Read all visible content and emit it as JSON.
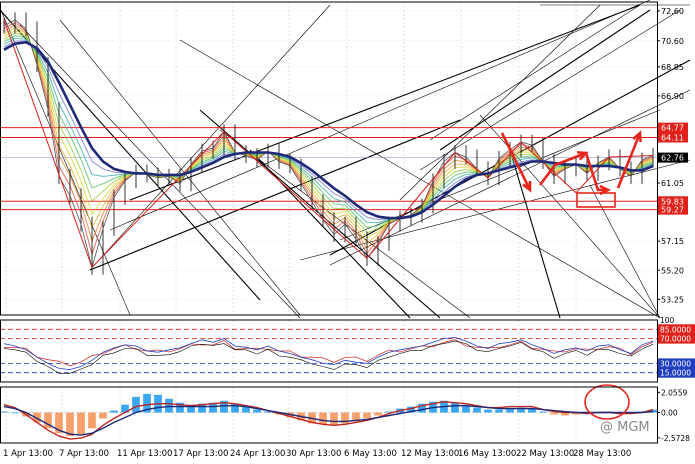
{
  "chart_data": {
    "type": "line",
    "instrument": "",
    "price_panel": {
      "ylim": [
        52.2,
        73.2
      ],
      "ticks": [
        "72.60",
        "70.60",
        "68.85",
        "66.90",
        "64.77",
        "64.11",
        "62.76",
        "61.05",
        "59.83",
        "59.27",
        "57.15",
        "55.20",
        "53.25"
      ],
      "tick_values": [
        72.6,
        70.6,
        68.85,
        66.9,
        64.77,
        64.11,
        62.76,
        61.05,
        59.83,
        59.27,
        57.15,
        55.2,
        53.25
      ],
      "highlighted_ticks": [
        "64.77",
        "64.11",
        "59.83",
        "59.27"
      ],
      "current_price": "62.76",
      "horizontal_levels": [
        64.77,
        64.11,
        59.83,
        59.27
      ],
      "close": [
        71.6,
        72.0,
        71.4,
        69.0,
        66.0,
        61.5,
        60.2,
        58.3,
        55.4,
        58.0,
        60.1,
        61.2,
        61.8,
        61.6,
        61.4,
        61.5,
        61.0,
        62.3,
        63.2,
        63.4,
        64.5,
        63.1,
        62.9,
        62.6,
        63.2,
        62.5,
        62.2,
        61.0,
        59.8,
        58.6,
        57.6,
        58.3,
        57.3,
        56.0,
        57.0,
        58.3,
        58.7,
        58.9,
        59.5,
        61.2,
        62.5,
        63.1,
        62.8,
        62.0,
        61.4,
        62.7,
        63.3,
        63.8,
        63.6,
        62.5,
        61.5,
        62.0,
        62.3,
        61.7,
        62.4,
        62.8,
        62.0,
        61.5,
        62.6,
        62.9
      ],
      "ma_slow": [
        70.0,
        70.4,
        70.5,
        70.1,
        69.2,
        67.8,
        66.3,
        64.8,
        63.4,
        62.5,
        62.0,
        61.8,
        61.7,
        61.7,
        61.6,
        61.6,
        61.6,
        61.8,
        62.1,
        62.4,
        62.8,
        63.0,
        63.1,
        63.1,
        63.1,
        63.0,
        62.8,
        62.4,
        61.9,
        61.3,
        60.7,
        60.2,
        59.6,
        59.1,
        58.8,
        58.7,
        58.7,
        58.8,
        59.1,
        59.6,
        60.2,
        60.8,
        61.3,
        61.6,
        61.7,
        61.9,
        62.1,
        62.3,
        62.5,
        62.5,
        62.4,
        62.3,
        62.3,
        62.2,
        62.2,
        62.2,
        62.1,
        61.9,
        61.9,
        62.2
      ]
    },
    "date_axis": [
      "1 Apr 13:00",
      "7 Apr 13:00",
      "11 Apr 13:00",
      "17 Apr 13:00",
      "24 Apr 13:00",
      "30 Apr 13:00",
      "6 May 13:00",
      "12 May 13:00",
      "16 May 13:00",
      "22 May 13:00",
      "28 May 13:00"
    ],
    "rsi_panel": {
      "ylim": [
        0,
        100
      ],
      "ticks": [
        "100",
        "85.0000",
        "70.0000",
        "30.0000",
        "15.0000"
      ],
      "tick_values": [
        100,
        85,
        70,
        30,
        15
      ],
      "highlighted_ticks": [
        "85.0000",
        "70.0000",
        "30.0000",
        "15.0000"
      ],
      "levels": [
        85,
        70,
        30,
        15
      ],
      "values": [
        62,
        58,
        52,
        40,
        30,
        22,
        20,
        25,
        35,
        48,
        55,
        60,
        58,
        50,
        48,
        52,
        55,
        62,
        68,
        64,
        70,
        58,
        56,
        52,
        58,
        50,
        46,
        40,
        36,
        30,
        28,
        35,
        32,
        30,
        40,
        48,
        52,
        55,
        58,
        64,
        70,
        72,
        66,
        58,
        54,
        62,
        64,
        68,
        60,
        54,
        46,
        52,
        55,
        50,
        58,
        60,
        52,
        46,
        60,
        66
      ]
    },
    "macd_panel": {
      "ylim": [
        -3.1,
        2.6
      ],
      "ticks": [
        "2.0559",
        "0.00",
        "-2.5728"
      ],
      "tick_values": [
        2.0559,
        0,
        -2.5728
      ],
      "histogram": [
        0.1,
        0.0,
        -0.4,
        -1.0,
        -1.6,
        -2.1,
        -2.4,
        -2.2,
        -1.6,
        -0.6,
        0.2,
        0.8,
        1.6,
        1.9,
        1.8,
        1.4,
        1.0,
        0.8,
        0.9,
        1.0,
        1.2,
        0.9,
        0.6,
        0.3,
        0.1,
        -0.2,
        -0.5,
        -0.8,
        -1.1,
        -1.2,
        -1.3,
        -1.1,
        -0.9,
        -0.6,
        -0.3,
        0.1,
        0.4,
        0.6,
        0.9,
        1.1,
        1.2,
        1.0,
        0.8,
        0.5,
        0.3,
        0.3,
        0.4,
        0.5,
        0.4,
        0.1,
        -0.2,
        -0.3,
        -0.2,
        -0.1,
        0.0,
        0.1,
        0.0,
        -0.1,
        0.1,
        0.3
      ],
      "signal": [
        0.6,
        0.4,
        0.0,
        -0.6,
        -1.2,
        -1.8,
        -2.2,
        -2.3,
        -2.1,
        -1.6,
        -1.0,
        -0.5,
        0.0,
        0.3,
        0.5,
        0.6,
        0.6,
        0.6,
        0.6,
        0.6,
        0.7,
        0.7,
        0.6,
        0.4,
        0.2,
        0.0,
        -0.2,
        -0.4,
        -0.6,
        -0.8,
        -0.9,
        -0.9,
        -0.8,
        -0.7,
        -0.5,
        -0.3,
        -0.1,
        0.1,
        0.3,
        0.5,
        0.6,
        0.7,
        0.7,
        0.6,
        0.5,
        0.4,
        0.4,
        0.4,
        0.4,
        0.3,
        0.2,
        0.1,
        0.0,
        0.0,
        0.0,
        0.0,
        0.0,
        0.0,
        0.0,
        0.1
      ],
      "macd": [
        0.8,
        0.5,
        -0.2,
        -1.0,
        -1.8,
        -2.4,
        -2.7,
        -2.6,
        -2.2,
        -1.3,
        -0.6,
        0.0,
        0.6,
        0.8,
        0.9,
        0.9,
        0.8,
        0.7,
        0.8,
        0.9,
        1.0,
        0.9,
        0.7,
        0.5,
        0.2,
        -0.1,
        -0.4,
        -0.7,
        -1.0,
        -1.2,
        -1.3,
        -1.2,
        -1.0,
        -0.8,
        -0.5,
        -0.1,
        0.2,
        0.4,
        0.7,
        0.9,
        1.1,
        1.0,
        0.9,
        0.7,
        0.5,
        0.5,
        0.6,
        0.6,
        0.6,
        0.3,
        0.1,
        0.0,
        0.0,
        -0.1,
        0.0,
        0.0,
        -0.1,
        -0.1,
        0.0,
        0.3
      ]
    },
    "watermark": "@ MGM",
    "colors": {
      "price": "#000000",
      "ma_slow": "#1e2a78",
      "levels": "#e0211b",
      "annotation": "#e8251c",
      "rsi_main": "#1f3fbf",
      "rsi_secondary": "#d23a3a",
      "macd_hist_pos": "#3aa7f0",
      "macd_hist_neg": "#f5a06b",
      "macd_line": "#c0261f",
      "signal_line": "#1e2a78",
      "current_price_bg": "#000000"
    },
    "grid": true,
    "legend": "none"
  }
}
